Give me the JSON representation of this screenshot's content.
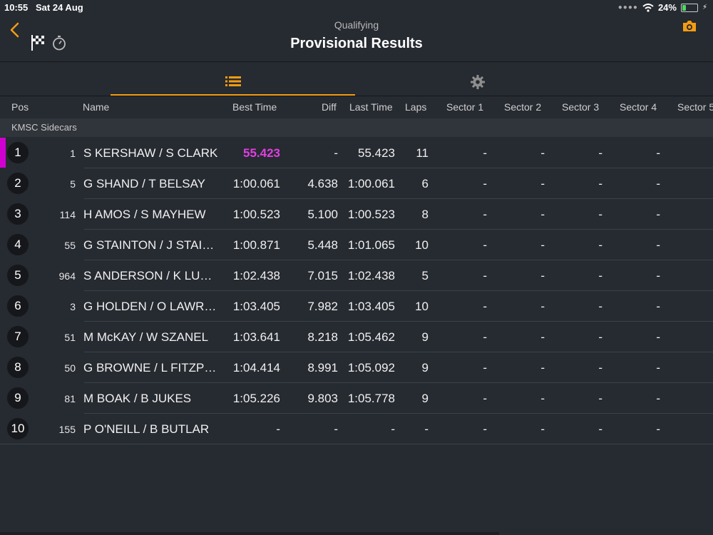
{
  "status": {
    "time": "10:55",
    "date": "Sat 24 Aug",
    "battery": "24%"
  },
  "header": {
    "subtitle": "Qualifying",
    "title": "Provisional Results"
  },
  "columns": {
    "pos": "Pos",
    "name": "Name",
    "best": "Best Time",
    "diff": "Diff",
    "last": "Last Time",
    "laps": "Laps",
    "s1": "Sector 1",
    "s2": "Sector 2",
    "s3": "Sector 3",
    "s4": "Sector 4",
    "s5": "Sector 5"
  },
  "group": "KMSC Sidecars",
  "colors": {
    "accent": "#f39c12",
    "fastest": "#e33ee3",
    "background": "#262a31"
  },
  "rows": [
    {
      "pos": "1",
      "num": "1",
      "name": "S KERSHAW / S CLARK",
      "best": "55.423",
      "diff": "-",
      "last": "55.423",
      "laps": "11",
      "s1": "-",
      "s2": "-",
      "s3": "-",
      "s4": "-"
    },
    {
      "pos": "2",
      "num": "5",
      "name": "G SHAND / T BELSAY",
      "best": "1:00.061",
      "diff": "4.638",
      "last": "1:00.061",
      "laps": "6",
      "s1": "-",
      "s2": "-",
      "s3": "-",
      "s4": "-"
    },
    {
      "pos": "3",
      "num": "114",
      "name": "H AMOS / S MAYHEW",
      "best": "1:00.523",
      "diff": "5.100",
      "last": "1:00.523",
      "laps": "8",
      "s1": "-",
      "s2": "-",
      "s3": "-",
      "s4": "-"
    },
    {
      "pos": "4",
      "num": "55",
      "name": "G STAINTON / J STAI…",
      "best": "1:00.871",
      "diff": "5.448",
      "last": "1:01.065",
      "laps": "10",
      "s1": "-",
      "s2": "-",
      "s3": "-",
      "s4": "-"
    },
    {
      "pos": "5",
      "num": "964",
      "name": "S ANDERSON /  K LU…",
      "best": "1:02.438",
      "diff": "7.015",
      "last": "1:02.438",
      "laps": "5",
      "s1": "-",
      "s2": "-",
      "s3": "-",
      "s4": "-"
    },
    {
      "pos": "6",
      "num": "3",
      "name": "G HOLDEN / O LAWR…",
      "best": "1:03.405",
      "diff": "7.982",
      "last": "1:03.405",
      "laps": "10",
      "s1": "-",
      "s2": "-",
      "s3": "-",
      "s4": "-"
    },
    {
      "pos": "7",
      "num": "51",
      "name": "M McKAY / W SZANEL",
      "best": "1:03.641",
      "diff": "8.218",
      "last": "1:05.462",
      "laps": "9",
      "s1": "-",
      "s2": "-",
      "s3": "-",
      "s4": "-"
    },
    {
      "pos": "8",
      "num": "50",
      "name": "G BROWNE / L FITZP…",
      "best": "1:04.414",
      "diff": "8.991",
      "last": "1:05.092",
      "laps": "9",
      "s1": "-",
      "s2": "-",
      "s3": "-",
      "s4": "-"
    },
    {
      "pos": "9",
      "num": "81",
      "name": "M BOAK / B JUKES",
      "best": "1:05.226",
      "diff": "9.803",
      "last": "1:05.778",
      "laps": "9",
      "s1": "-",
      "s2": "-",
      "s3": "-",
      "s4": "-"
    },
    {
      "pos": "10",
      "num": "155",
      "name": "P O'NEILL / B BUTLAR",
      "best": "-",
      "diff": "-",
      "last": "-",
      "laps": "-",
      "s1": "-",
      "s2": "-",
      "s3": "-",
      "s4": "-"
    }
  ]
}
